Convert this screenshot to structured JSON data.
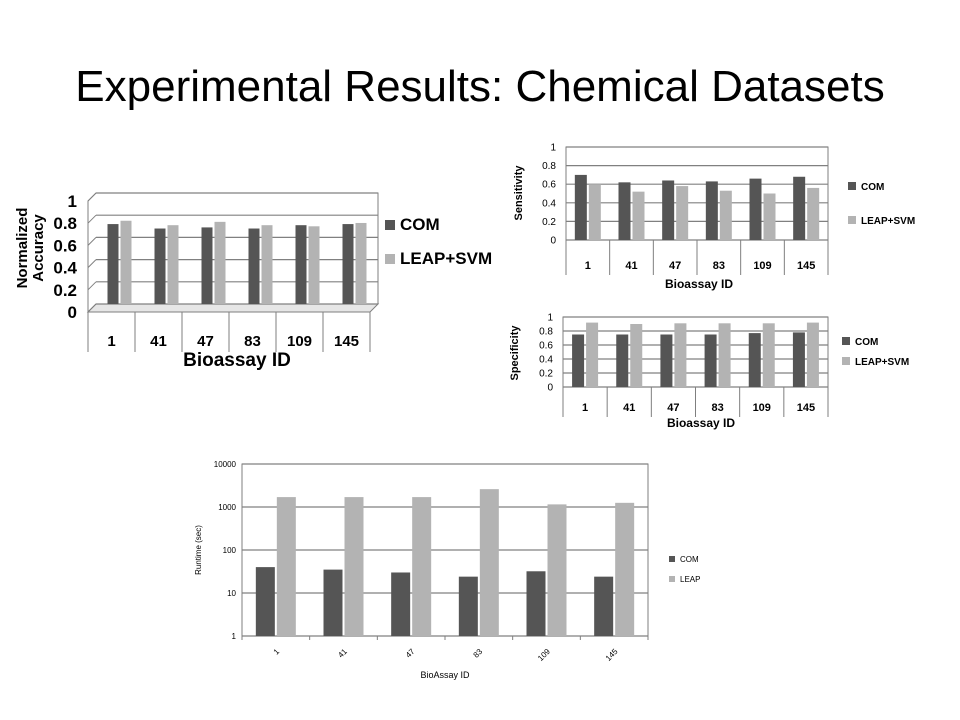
{
  "slide": {
    "title": "Experimental Results: Chemical Datasets"
  },
  "colors": {
    "com": "#555555",
    "leap": "#b3b3b3",
    "grid": "#808080"
  },
  "chart_data": [
    {
      "id": "accuracy",
      "type": "bar",
      "title": "",
      "xlabel": "Bioassay ID",
      "ylabel": "Normalized Accuracy",
      "categories": [
        "1",
        "41",
        "47",
        "83",
        "109",
        "145"
      ],
      "ylim": [
        0,
        1
      ],
      "yticks": [
        "0",
        "0.2",
        "0.4",
        "0.6",
        "0.8",
        "1"
      ],
      "grid": true,
      "legend": "right",
      "series": [
        {
          "name": "COM",
          "values": [
            0.72,
            0.68,
            0.69,
            0.68,
            0.71,
            0.72
          ]
        },
        {
          "name": "LEAP+SVM",
          "values": [
            0.75,
            0.71,
            0.74,
            0.71,
            0.7,
            0.73
          ]
        }
      ]
    },
    {
      "id": "sensitivity",
      "type": "bar",
      "title": "",
      "xlabel": "Bioassay ID",
      "ylabel": "Sensitivity",
      "categories": [
        "1",
        "41",
        "47",
        "83",
        "109",
        "145"
      ],
      "ylim": [
        0,
        1
      ],
      "yticks": [
        "0",
        "0.2",
        "0.4",
        "0.6",
        "0.8",
        "1"
      ],
      "grid": true,
      "legend": "right",
      "series": [
        {
          "name": "COM",
          "values": [
            0.7,
            0.62,
            0.64,
            0.63,
            0.66,
            0.68
          ]
        },
        {
          "name": "LEAP+SVM",
          "values": [
            0.6,
            0.52,
            0.58,
            0.53,
            0.5,
            0.56
          ]
        }
      ]
    },
    {
      "id": "specificity",
      "type": "bar",
      "title": "",
      "xlabel": "Bioassay ID",
      "ylabel": "Specificity",
      "categories": [
        "1",
        "41",
        "47",
        "83",
        "109",
        "145"
      ],
      "ylim": [
        0,
        1
      ],
      "yticks": [
        "0",
        "0.2",
        "0.4",
        "0.6",
        "0.8",
        "1"
      ],
      "grid": true,
      "legend": "right",
      "series": [
        {
          "name": "COM",
          "values": [
            0.75,
            0.75,
            0.75,
            0.75,
            0.77,
            0.78
          ]
        },
        {
          "name": "LEAP+SVM",
          "values": [
            0.92,
            0.9,
            0.91,
            0.91,
            0.91,
            0.92
          ]
        }
      ]
    },
    {
      "id": "runtime",
      "type": "bar",
      "title": "",
      "xlabel": "BioAssay ID",
      "ylabel": "Runtime (sec)",
      "categories": [
        "1",
        "41",
        "47",
        "83",
        "109",
        "145"
      ],
      "yscale": "log",
      "ylim": [
        1,
        10000
      ],
      "yticks": [
        "1",
        "10",
        "100",
        "1000",
        "10000"
      ],
      "grid": true,
      "legend": "right",
      "series": [
        {
          "name": "COM",
          "values": [
            40,
            35,
            30,
            24,
            32,
            24
          ]
        },
        {
          "name": "LEAP",
          "values": [
            1700,
            1700,
            1700,
            2600,
            1150,
            1250
          ]
        }
      ]
    }
  ]
}
